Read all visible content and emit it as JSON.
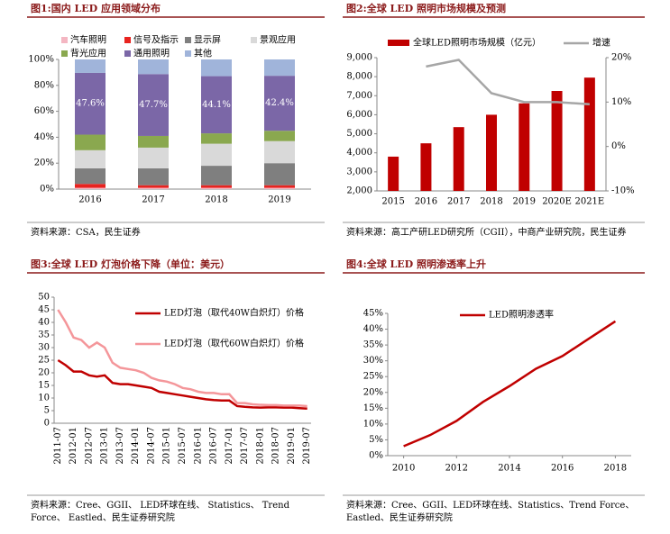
{
  "chart_data": [
    {
      "type": "bar",
      "stacked": true,
      "title": "图1:国内 LED 应用领域分布",
      "categories": [
        "2016",
        "2017",
        "2018",
        "2019"
      ],
      "series": [
        {
          "name": "汽车照明",
          "color": "#f4b6c2",
          "values": [
            1,
            1,
            1,
            1
          ]
        },
        {
          "name": "信号及指示",
          "color": "#e8231f",
          "values": [
            3,
            2,
            2,
            2
          ]
        },
        {
          "name": "显示屏",
          "color": "#7f7f7f",
          "values": [
            12,
            13,
            15,
            17
          ]
        },
        {
          "name": "景观应用",
          "color": "#d9d9d9",
          "values": [
            14,
            16,
            17,
            17
          ]
        },
        {
          "name": "背光应用",
          "color": "#8aa84f",
          "values": [
            12,
            9,
            8,
            8
          ]
        },
        {
          "name": "通用照明",
          "color": "#7b67a7",
          "values": [
            47.6,
            47.7,
            44.1,
            42.4
          ],
          "value_labels": [
            "47.6%",
            "47.7%",
            "44.1%",
            "42.4%"
          ]
        },
        {
          "name": "其他",
          "color": "#a0b4da",
          "values": [
            10.4,
            11.3,
            12.9,
            12.6
          ]
        }
      ],
      "ylim": [
        0,
        100
      ],
      "yticks": [
        {
          "value": 0,
          "label": "0%"
        },
        {
          "value": 20,
          "label": "20%"
        },
        {
          "value": 40,
          "label": "40%"
        },
        {
          "value": 60,
          "label": "60%"
        },
        {
          "value": 80,
          "label": "80%"
        },
        {
          "value": 100,
          "label": "100%"
        }
      ]
    },
    {
      "type": "combo",
      "title": "图2:全球 LED 照明市场规模及预测",
      "categories": [
        "2015",
        "2016",
        "2017",
        "2018",
        "2019",
        "2020E",
        "2021E"
      ],
      "series": [
        {
          "name": "全球LED照明市场规模（亿元）",
          "type": "bar",
          "color": "#c00000",
          "values": [
            3800,
            4500,
            5350,
            6000,
            6600,
            7250,
            7950
          ]
        },
        {
          "name": "增速",
          "type": "line",
          "axis": "y2",
          "color": "#a6a6a6",
          "values": [
            null,
            18,
            19.5,
            12,
            10,
            10,
            9.5
          ]
        }
      ],
      "ylim": [
        2000,
        9000
      ],
      "yticks": [
        {
          "value": 2000,
          "label": "2,000"
        },
        {
          "value": 3000,
          "label": "3,000"
        },
        {
          "value": 4000,
          "label": "4,000"
        },
        {
          "value": 5000,
          "label": "5,000"
        },
        {
          "value": 6000,
          "label": "6,000"
        },
        {
          "value": 7000,
          "label": "7,000"
        },
        {
          "value": 8000,
          "label": "8,000"
        },
        {
          "value": 9000,
          "label": "9,000"
        }
      ],
      "y2lim": [
        -10,
        20
      ],
      "y2ticks": [
        {
          "value": -10,
          "label": "-10%"
        },
        {
          "value": 0,
          "label": "0%"
        },
        {
          "value": 10,
          "label": "10%"
        },
        {
          "value": 20,
          "label": "20%"
        }
      ]
    },
    {
      "type": "line",
      "title": "图3:全球 LED 灯泡价格下降（单位：美元）",
      "categories": [
        "2011-07",
        null,
        "2012-01",
        null,
        "2012-07",
        null,
        "2013-01",
        null,
        "2013-07",
        null,
        "2014-01",
        null,
        "2014-07",
        null,
        "2015-01",
        null,
        "2015-07",
        null,
        "2016-01",
        null,
        "2016-07",
        null,
        "2017-01",
        null,
        "2017-07",
        null,
        "2018-01",
        null,
        "2018-07",
        null,
        "2019-01",
        null,
        "2019-07"
      ],
      "series": [
        {
          "name": "LED灯泡（取代40W白炽灯）价格",
          "color": "#c00000",
          "values": [
            25,
            23,
            20.5,
            20.5,
            19,
            18.5,
            19,
            16,
            15.5,
            15.5,
            15,
            14.5,
            14,
            12.5,
            12,
            11.5,
            11,
            10.5,
            10,
            9.5,
            9.2,
            9,
            9,
            6.8,
            6.5,
            6.3,
            6.2,
            6.3,
            6.3,
            6.2,
            6.2,
            6,
            5.8
          ]
        },
        {
          "name": "LED灯泡（取代60W白炽灯）价格",
          "color": "#f4969a",
          "values": [
            45,
            40,
            34,
            33,
            30,
            32,
            30,
            24,
            22,
            21.5,
            21,
            20,
            18,
            17,
            16.5,
            15.5,
            14,
            13.5,
            12.5,
            12,
            12,
            11.5,
            11.5,
            8,
            8,
            7.5,
            7.3,
            7.2,
            7.2,
            7,
            7,
            7,
            6.8
          ]
        }
      ],
      "ylim": [
        0,
        50
      ],
      "yticks": [
        0,
        5,
        10,
        15,
        20,
        25,
        30,
        35,
        40,
        45,
        50
      ]
    },
    {
      "type": "line",
      "title": "图4:全球 LED 照明渗透率上升",
      "x": [
        2010,
        2011,
        2012,
        2013,
        2014,
        2015,
        2016,
        2017,
        2018
      ],
      "series": [
        {
          "name": "LED照明渗透率",
          "color": "#c00000",
          "values": [
            3,
            6.5,
            11,
            17,
            22,
            27.5,
            31.5,
            37,
            42.5
          ]
        }
      ],
      "xlim": [
        2009.4,
        2018.6
      ],
      "xticks": [
        2010,
        2012,
        2014,
        2016,
        2018
      ],
      "ylim": [
        0,
        45
      ],
      "yticks": [
        {
          "value": 0,
          "label": "0%"
        },
        {
          "value": 5,
          "label": "5%"
        },
        {
          "value": 10,
          "label": "10%"
        },
        {
          "value": 15,
          "label": "15%"
        },
        {
          "value": 20,
          "label": "20%"
        },
        {
          "value": 25,
          "label": "25%"
        },
        {
          "value": 30,
          "label": "30%"
        },
        {
          "value": 35,
          "label": "35%"
        },
        {
          "value": 40,
          "label": "40%"
        },
        {
          "value": 45,
          "label": "45%"
        }
      ]
    }
  ],
  "sources": [
    "资料来源：CSA，民生证券",
    "资料来源：高工产研LED研究所（CGII），中商产业研究院，民生证券",
    "资料来源：Cree、GGII、 LED环球在线、 Statistics、 Trend Force、 Eastled、民生证券研究院",
    "资料来源：Cree、GGII、LED环球在线、Statistics、Trend Force、Eastled、民生证券研究院"
  ]
}
